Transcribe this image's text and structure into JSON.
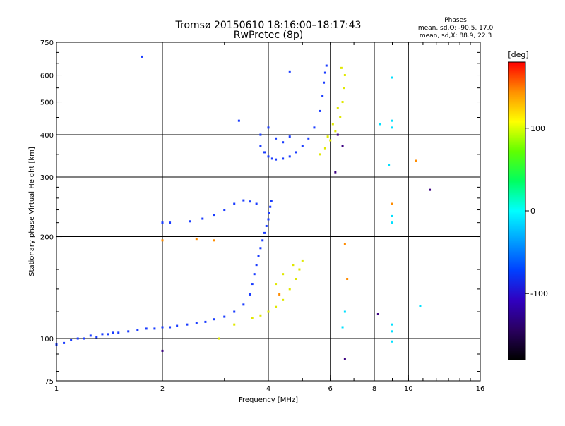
{
  "chart_data": {
    "type": "scatter",
    "title": "Tromsø 20150610 18:16:00–18:17:43",
    "subtitle": "RwPretec (8p)",
    "xlabel": "Frequency [MHz]",
    "ylabel": "Stationary phase Virtual Height [km]",
    "x_scale": "log",
    "y_scale": "log",
    "xlim": [
      1,
      16
    ],
    "ylim": [
      75,
      750
    ],
    "x_ticks": [
      1,
      2,
      4,
      6,
      8,
      10,
      16
    ],
    "y_ticks": [
      75,
      100,
      200,
      300,
      400,
      500,
      600,
      750
    ],
    "x_gridlines": [
      2,
      4,
      6,
      8,
      10
    ],
    "y_gridlines": [
      100,
      200,
      300,
      400,
      500,
      600
    ],
    "grid": true,
    "phases": {
      "heading": "Phases",
      "o_line": "mean, sd,O: -90.5, 17.0",
      "x_line": "mean, sd,X:  88.9, 22.3"
    },
    "colorbar": {
      "label": "[deg]",
      "range": [
        -180,
        180
      ],
      "ticks": [
        100,
        0,
        -100
      ],
      "colormap": [
        "#000000",
        "#2a0060",
        "#3000c0",
        "#0040ff",
        "#00a0ff",
        "#00ffff",
        "#00ff60",
        "#60ff00",
        "#ffff00",
        "#ff9000",
        "#ff0000"
      ]
    },
    "series": [
      {
        "note_color": "#1a3cff",
        "phase": -95,
        "points": [
          [
            1.0,
            96
          ],
          [
            1.05,
            97
          ],
          [
            1.1,
            99
          ],
          [
            1.15,
            100
          ],
          [
            1.2,
            100
          ],
          [
            1.25,
            102
          ],
          [
            1.3,
            101
          ],
          [
            1.35,
            103
          ],
          [
            1.4,
            103
          ],
          [
            1.45,
            104
          ],
          [
            1.5,
            104
          ],
          [
            1.6,
            105
          ],
          [
            1.7,
            106
          ],
          [
            1.8,
            107
          ],
          [
            1.9,
            107
          ],
          [
            2.0,
            108
          ],
          [
            2.1,
            108
          ],
          [
            2.2,
            109
          ],
          [
            2.35,
            110
          ],
          [
            2.5,
            111
          ],
          [
            2.65,
            112
          ],
          [
            2.8,
            114
          ],
          [
            3.0,
            116
          ],
          [
            3.2,
            120
          ],
          [
            3.4,
            126
          ],
          [
            3.55,
            135
          ],
          [
            3.6,
            145
          ],
          [
            3.65,
            155
          ],
          [
            3.7,
            165
          ],
          [
            3.75,
            175
          ],
          [
            3.8,
            185
          ],
          [
            3.85,
            195
          ],
          [
            3.9,
            205
          ],
          [
            3.95,
            215
          ],
          [
            4.0,
            225
          ],
          [
            4.02,
            235
          ],
          [
            4.05,
            245
          ],
          [
            4.08,
            255
          ],
          [
            2.0,
            220
          ],
          [
            2.1,
            220
          ],
          [
            2.4,
            222
          ],
          [
            2.6,
            226
          ],
          [
            2.8,
            232
          ],
          [
            3.0,
            240
          ],
          [
            3.2,
            250
          ],
          [
            3.4,
            256
          ],
          [
            3.55,
            254
          ],
          [
            3.7,
            250
          ],
          [
            3.8,
            370
          ],
          [
            3.9,
            355
          ],
          [
            4.0,
            345
          ],
          [
            4.1,
            340
          ],
          [
            4.2,
            338
          ],
          [
            4.4,
            340
          ],
          [
            4.6,
            345
          ],
          [
            4.8,
            355
          ],
          [
            5.0,
            370
          ],
          [
            5.2,
            390
          ],
          [
            5.4,
            420
          ],
          [
            5.6,
            470
          ],
          [
            5.7,
            520
          ],
          [
            5.75,
            570
          ],
          [
            5.8,
            610
          ],
          [
            5.85,
            640
          ],
          [
            3.8,
            400
          ],
          [
            4.0,
            420
          ],
          [
            4.2,
            390
          ],
          [
            4.4,
            380
          ],
          [
            4.6,
            395
          ],
          [
            1.75,
            680
          ],
          [
            3.3,
            440
          ],
          [
            4.6,
            615
          ]
        ]
      },
      {
        "note_color": "#e0e800",
        "phase": 95,
        "points": [
          [
            3.6,
            115
          ],
          [
            3.8,
            117
          ],
          [
            4.0,
            120
          ],
          [
            4.2,
            124
          ],
          [
            4.4,
            130
          ],
          [
            4.6,
            140
          ],
          [
            4.8,
            150
          ],
          [
            4.9,
            160
          ],
          [
            5.0,
            170
          ],
          [
            4.4,
            155
          ],
          [
            4.2,
            145
          ],
          [
            4.7,
            165
          ],
          [
            5.6,
            350
          ],
          [
            5.8,
            365
          ],
          [
            6.0,
            385
          ],
          [
            6.2,
            410
          ],
          [
            6.4,
            450
          ],
          [
            6.5,
            500
          ],
          [
            6.55,
            550
          ],
          [
            6.6,
            600
          ],
          [
            6.45,
            630
          ],
          [
            5.9,
            395
          ],
          [
            6.1,
            430
          ],
          [
            6.3,
            480
          ],
          [
            3.2,
            110
          ],
          [
            2.9,
            100
          ]
        ]
      },
      {
        "note_color": "#ff8c00",
        "phase": 150,
        "points": [
          [
            2.0,
            195
          ],
          [
            2.5,
            197
          ],
          [
            2.8,
            195
          ],
          [
            4.3,
            135
          ],
          [
            6.6,
            190
          ],
          [
            6.7,
            150
          ],
          [
            10.5,
            335
          ],
          [
            9.0,
            250
          ]
        ]
      },
      {
        "note_color": "#00e0ff",
        "phase": 10,
        "points": [
          [
            8.3,
            430
          ],
          [
            8.8,
            325
          ],
          [
            9.0,
            440
          ],
          [
            9.0,
            420
          ],
          [
            9.0,
            230
          ],
          [
            9.0,
            220
          ],
          [
            9.0,
            110
          ],
          [
            9.0,
            105
          ],
          [
            9.0,
            98
          ],
          [
            6.5,
            108
          ],
          [
            9.0,
            590
          ],
          [
            10.8,
            125
          ],
          [
            6.6,
            120
          ]
        ]
      },
      {
        "note_color": "#3b0080",
        "phase": -150,
        "points": [
          [
            2.0,
            92
          ],
          [
            6.6,
            87
          ],
          [
            6.5,
            370
          ],
          [
            8.2,
            118
          ],
          [
            11.5,
            275
          ],
          [
            6.2,
            310
          ],
          [
            6.3,
            400
          ]
        ]
      }
    ]
  }
}
